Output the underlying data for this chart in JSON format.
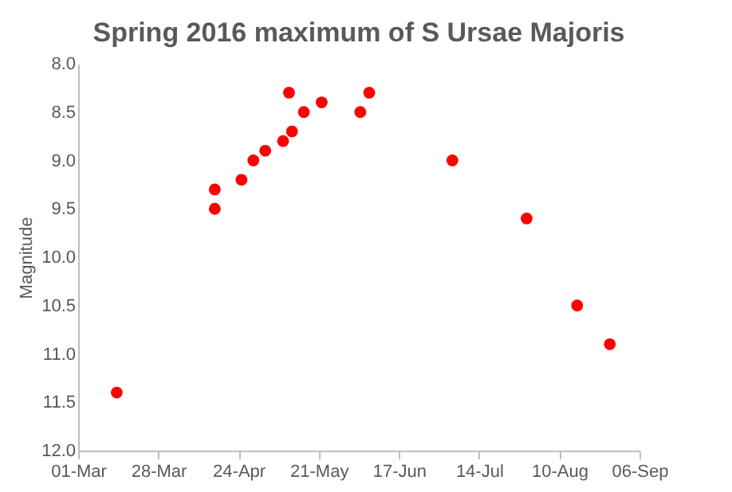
{
  "chart_data": {
    "type": "scatter",
    "title": "Spring 2016 maximum of S Ursae Majoris",
    "ylabel": "Magnitude",
    "x": [
      "2016-03-14",
      "2016-04-16",
      "2016-04-16",
      "2016-04-25",
      "2016-04-29",
      "2016-05-03",
      "2016-05-09",
      "2016-05-11",
      "2016-05-12",
      "2016-05-16",
      "2016-05-22",
      "2016-06-04",
      "2016-06-07",
      "2016-07-05",
      "2016-07-30",
      "2016-08-16",
      "2016-08-27"
    ],
    "series": [
      {
        "color": "#ff0000",
        "values": [
          11.4,
          9.3,
          9.5,
          9.2,
          9.0,
          8.9,
          8.8,
          8.3,
          8.7,
          8.5,
          8.4,
          8.5,
          8.3,
          9.0,
          9.6,
          10.5,
          10.9
        ]
      }
    ],
    "xlim": [
      "2016-03-01",
      "2016-09-06"
    ],
    "xticks": [
      {
        "value": "2016-03-01",
        "label": "01-Mar"
      },
      {
        "value": "2016-03-28",
        "label": "28-Mar"
      },
      {
        "value": "2016-04-24",
        "label": "24-Apr"
      },
      {
        "value": "2016-05-21",
        "label": "21-May"
      },
      {
        "value": "2016-06-17",
        "label": "17-Jun"
      },
      {
        "value": "2016-07-14",
        "label": "14-Jul"
      },
      {
        "value": "2016-08-10",
        "label": "10-Aug"
      },
      {
        "value": "2016-09-06",
        "label": "06-Sep"
      }
    ],
    "ylim": [
      12.0,
      8.0
    ],
    "yticks": [
      {
        "value": 8.0,
        "label": "8.0"
      },
      {
        "value": 8.5,
        "label": "8.5"
      },
      {
        "value": 9.0,
        "label": "9.0"
      },
      {
        "value": 9.5,
        "label": "9.5"
      },
      {
        "value": 10.0,
        "label": "10.0"
      },
      {
        "value": 10.5,
        "label": "10.5"
      },
      {
        "value": 11.0,
        "label": "11.0"
      },
      {
        "value": 11.5,
        "label": "11.5"
      },
      {
        "value": 12.0,
        "label": "12.0"
      }
    ],
    "marker": "circle",
    "grid": false,
    "legend": false
  }
}
